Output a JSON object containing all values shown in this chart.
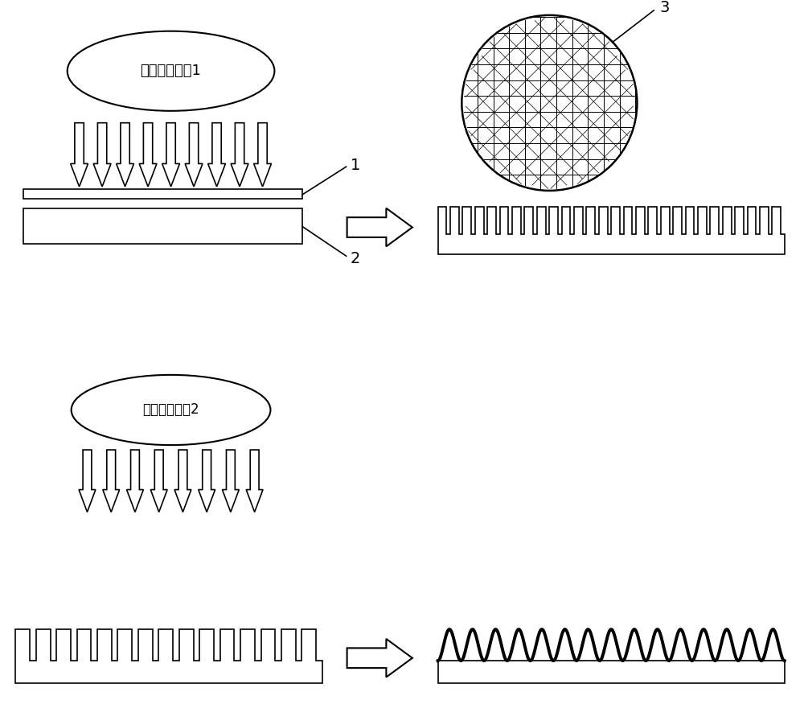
{
  "bg_color": "#ffffff",
  "text_color": "#000000",
  "label1": "低温等离子体1",
  "label2": "低温等离子体2",
  "label_num1": "1",
  "label_num2": "2",
  "label_num3": "3",
  "figsize": [
    10.0,
    9.01
  ],
  "dpi": 100
}
